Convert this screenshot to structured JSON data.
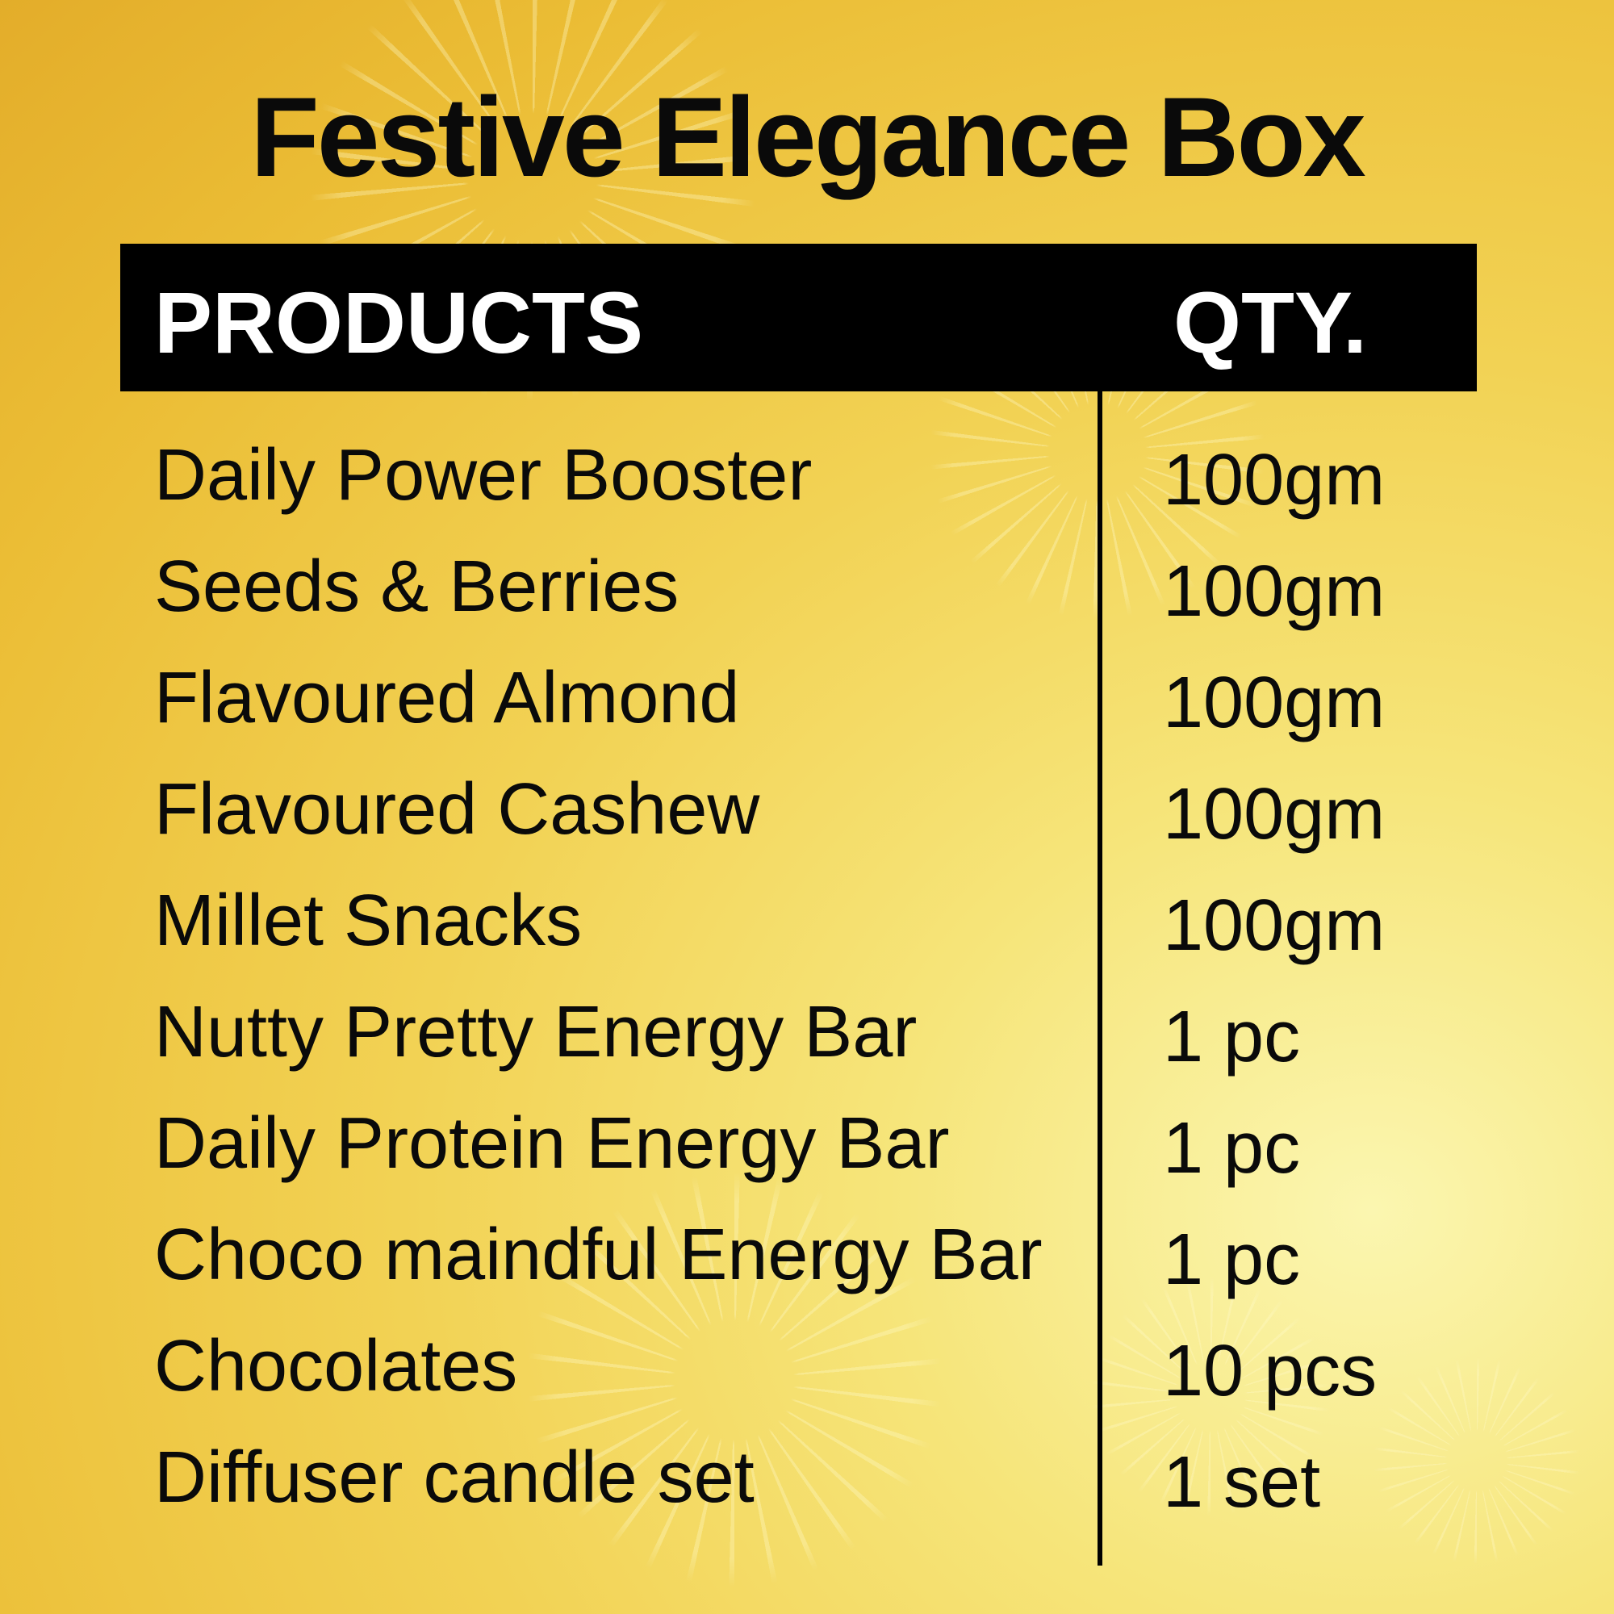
{
  "title": "Festive Elegance Box",
  "table": {
    "headers": {
      "products": "PRODUCTS",
      "qty": "QTY."
    },
    "rows": [
      {
        "product": "Daily Power Booster",
        "qty": "100gm"
      },
      {
        "product": "Seeds & Berries",
        "qty": "100gm"
      },
      {
        "product": "Flavoured Almond",
        "qty": "100gm"
      },
      {
        "product": "Flavoured Cashew",
        "qty": "100gm"
      },
      {
        "product": "Millet Snacks",
        "qty": "100gm"
      },
      {
        "product": "Nutty Pretty Energy Bar",
        "qty": "1 pc"
      },
      {
        "product": "Daily Protein Energy Bar",
        "qty": "1 pc"
      },
      {
        "product": "Choco maindful Energy Bar",
        "qty": "1 pc"
      },
      {
        "product": "Chocolates",
        "qty": "10 pcs"
      },
      {
        "product": "Diffuser candle set",
        "qty": "1 set"
      }
    ]
  },
  "colors": {
    "background": "#f2d254",
    "header_bg": "#000000",
    "header_text": "#ffffff",
    "text": "#0a0a0a"
  }
}
